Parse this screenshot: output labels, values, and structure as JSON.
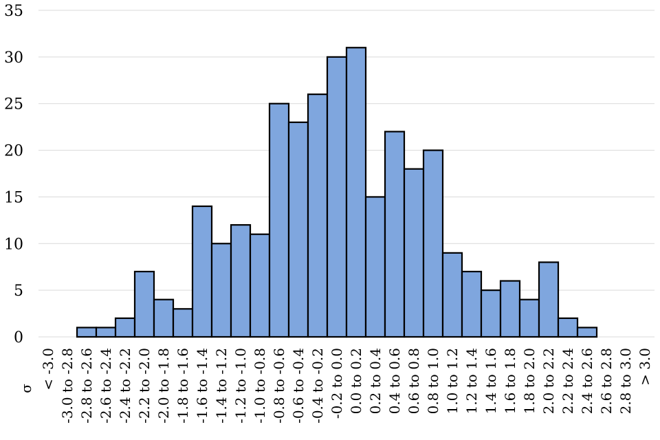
{
  "chart_data": {
    "type": "bar",
    "title": "",
    "xlabel": "σ",
    "ylabel": "",
    "ylim": [
      0,
      35
    ],
    "yticks": [
      0,
      5,
      10,
      15,
      20,
      25,
      30,
      35
    ],
    "grid": true,
    "legend": "none",
    "categories": [
      "< -3.0",
      "-3.0 to -2.8",
      "-2.8 to -2.6",
      "-2.6 to -2.4",
      "-2.4 to -2.2",
      "-2.2 to -2.0",
      "-2.0 to -1.8",
      "-1.8 to -1.6",
      "-1.6 to -1.4",
      "-1.4 to -1.2",
      "-1.2 to -1.0",
      "-1.0 to -0.8",
      "-0.8 to -0.6",
      "-0.6 to -0.4",
      "-0.4 to -0.2",
      "-0.2 to 0.0",
      "0.0 to 0.2",
      "0.2 to 0.4",
      "0.4 to 0.6",
      "0.6 to 0.8",
      "0.8 to 1.0",
      "1.0 to 1.2",
      "1.2 to 1.4",
      "1.4 to 1.6",
      "1.6 to 1.8",
      "1.8 to 2.0",
      "2.0 to 2.2",
      "2.2 to 2.4",
      "2.4 to 2.6",
      "2.6 to 2.8",
      "2.8 to 3.0",
      "> 3.0"
    ],
    "values": [
      0,
      0,
      1,
      1,
      2,
      7,
      4,
      3,
      14,
      10,
      12,
      11,
      25,
      23,
      26,
      30,
      31,
      15,
      22,
      18,
      20,
      9,
      7,
      5,
      6,
      4,
      8,
      2,
      1,
      0,
      0,
      0
    ],
    "colors": {
      "bar": "#7fa6de",
      "edge": "#000000",
      "grid": "#d9d9d9"
    }
  }
}
